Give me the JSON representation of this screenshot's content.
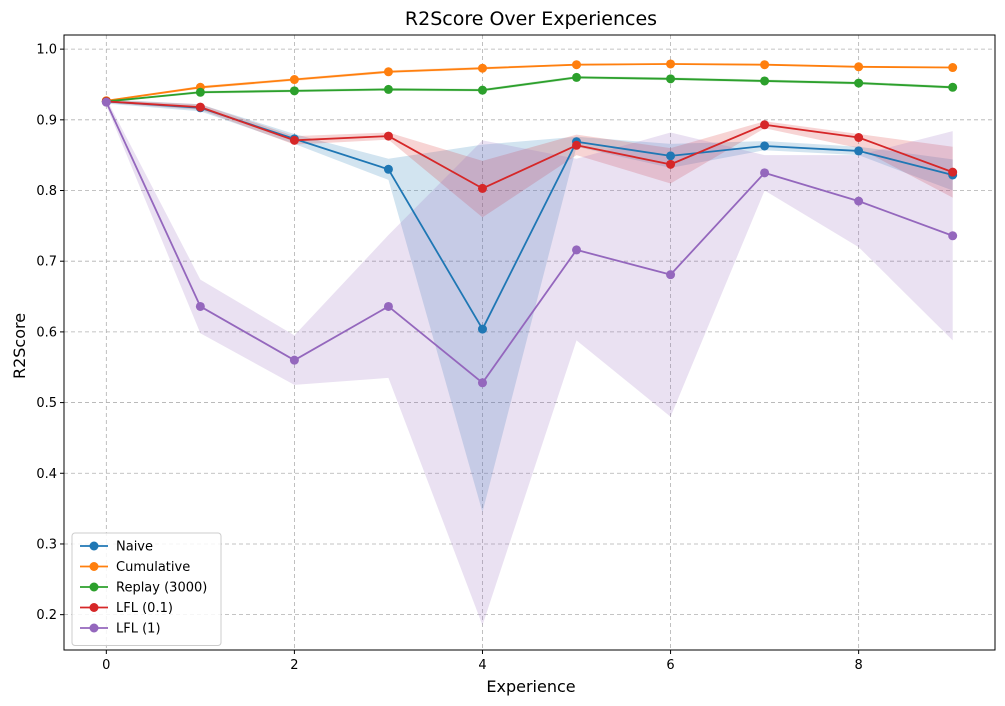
{
  "chart_data": {
    "type": "line",
    "title": "R2Score Over Experiences",
    "xlabel": "Experience",
    "ylabel": "R2Score",
    "x": [
      0,
      1,
      2,
      3,
      4,
      5,
      6,
      7,
      8,
      9
    ],
    "xlim": [
      -0.45,
      9.45
    ],
    "ylim": [
      0.15,
      1.02
    ],
    "xticks": [
      0,
      2,
      4,
      6,
      8
    ],
    "yticks": [
      0.2,
      0.3,
      0.4,
      0.5,
      0.6,
      0.7,
      0.8,
      0.9,
      1.0
    ],
    "grid": true,
    "grid_style": "dashed",
    "legend_position": "lower-left",
    "series": [
      {
        "name": "Naive",
        "color": "#1f77b4",
        "values": [
          0.926,
          0.917,
          0.873,
          0.83,
          0.604,
          0.869,
          0.849,
          0.863,
          0.856,
          0.822
        ],
        "lower": [
          0.923,
          0.912,
          0.866,
          0.815,
          0.345,
          0.862,
          0.832,
          0.857,
          0.85,
          0.8
        ],
        "upper": [
          0.929,
          0.922,
          0.88,
          0.845,
          0.865,
          0.876,
          0.866,
          0.87,
          0.862,
          0.844
        ]
      },
      {
        "name": "Cumulative",
        "color": "#ff7f0e",
        "values": [
          0.927,
          0.946,
          0.957,
          0.968,
          0.973,
          0.978,
          0.979,
          0.978,
          0.975,
          0.974
        ],
        "lower": [
          0.926,
          0.944,
          0.955,
          0.966,
          0.971,
          0.977,
          0.978,
          0.977,
          0.974,
          0.973
        ],
        "upper": [
          0.928,
          0.948,
          0.959,
          0.97,
          0.975,
          0.979,
          0.98,
          0.979,
          0.976,
          0.975
        ]
      },
      {
        "name": "Replay (3000)",
        "color": "#2ca02c",
        "values": [
          0.926,
          0.939,
          0.941,
          0.943,
          0.942,
          0.96,
          0.958,
          0.955,
          0.952,
          0.946
        ],
        "lower": [
          0.925,
          0.937,
          0.939,
          0.941,
          0.94,
          0.958,
          0.956,
          0.953,
          0.95,
          0.944
        ],
        "upper": [
          0.927,
          0.941,
          0.943,
          0.945,
          0.944,
          0.962,
          0.96,
          0.957,
          0.954,
          0.948
        ]
      },
      {
        "name": "LFL (0.1)",
        "color": "#d62728",
        "values": [
          0.926,
          0.918,
          0.871,
          0.877,
          0.803,
          0.864,
          0.837,
          0.893,
          0.875,
          0.826
        ],
        "lower": [
          0.924,
          0.914,
          0.865,
          0.872,
          0.762,
          0.85,
          0.81,
          0.888,
          0.86,
          0.79
        ],
        "upper": [
          0.928,
          0.922,
          0.877,
          0.882,
          0.842,
          0.879,
          0.86,
          0.898,
          0.88,
          0.862
        ]
      },
      {
        "name": "LFL (1)",
        "color": "#9467bd",
        "values": [
          0.925,
          0.636,
          0.56,
          0.636,
          0.528,
          0.716,
          0.681,
          0.825,
          0.785,
          0.736
        ],
        "lower": [
          0.92,
          0.598,
          0.525,
          0.535,
          0.185,
          0.588,
          0.48,
          0.8,
          0.72,
          0.588
        ],
        "upper": [
          0.93,
          0.674,
          0.595,
          0.737,
          0.871,
          0.845,
          0.882,
          0.85,
          0.85,
          0.884
        ]
      }
    ]
  }
}
